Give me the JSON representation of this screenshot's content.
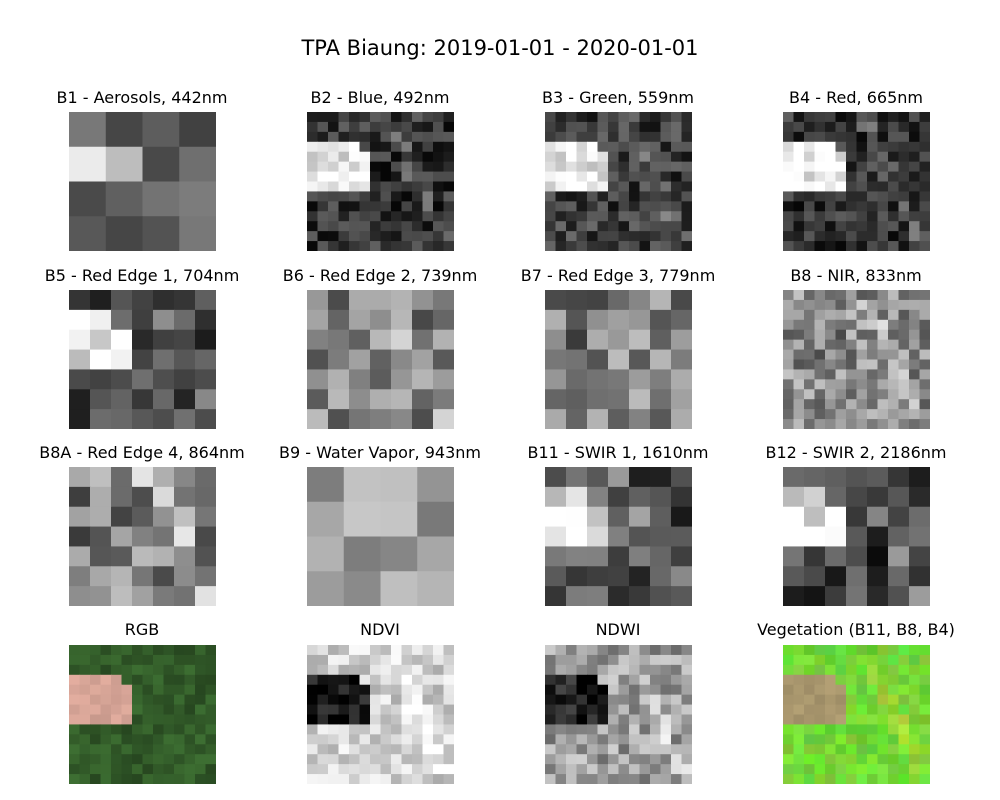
{
  "figure": {
    "title": "TPA Biaung: 2019-01-01 - 2020-01-01"
  },
  "panels": [
    {
      "label": "B1 - Aerosols, 442nm",
      "kind": "gray",
      "seed": 11,
      "grid": 4,
      "base": 0.34,
      "contrast": 0.16,
      "patch": 0.5
    },
    {
      "label": "B2 - Blue, 492nm",
      "kind": "gray",
      "seed": 21,
      "grid": 14,
      "base": 0.2,
      "contrast": 0.18,
      "patch": 0.72
    },
    {
      "label": "B3 - Green, 559nm",
      "kind": "gray",
      "seed": 31,
      "grid": 14,
      "base": 0.24,
      "contrast": 0.18,
      "patch": 0.68
    },
    {
      "label": "B4 - Red, 665nm",
      "kind": "gray",
      "seed": 41,
      "grid": 14,
      "base": 0.2,
      "contrast": 0.18,
      "patch": 0.74
    },
    {
      "label": "B5 - Red Edge 1, 704nm",
      "kind": "gray",
      "seed": 51,
      "grid": 7,
      "base": 0.26,
      "contrast": 0.18,
      "patch": 0.64
    },
    {
      "label": "B6 - Red Edge 2, 739nm",
      "kind": "gray",
      "seed": 61,
      "grid": 7,
      "base": 0.5,
      "contrast": 0.24,
      "patch": -0.08
    },
    {
      "label": "B7 - Red Edge 3, 779nm",
      "kind": "gray",
      "seed": 71,
      "grid": 7,
      "base": 0.5,
      "contrast": 0.24,
      "patch": -0.05
    },
    {
      "label": "B8 - NIR, 833nm",
      "kind": "gray",
      "seed": 81,
      "grid": 14,
      "base": 0.55,
      "contrast": 0.22,
      "patch": -0.05
    },
    {
      "label": "B8A - Red Edge 4, 864nm",
      "kind": "gray",
      "seed": 91,
      "grid": 7,
      "base": 0.52,
      "contrast": 0.26,
      "patch": -0.05
    },
    {
      "label": "B9 - Water Vapor, 943nm",
      "kind": "gray",
      "seed": 101,
      "grid": 4,
      "base": 0.62,
      "contrast": 0.18,
      "patch": 0.05
    },
    {
      "label": "B11 - SWIR 1, 1610nm",
      "kind": "gray",
      "seed": 111,
      "grid": 7,
      "base": 0.3,
      "contrast": 0.22,
      "patch": 0.58
    },
    {
      "label": "B12 - SWIR 2, 2186nm",
      "kind": "gray",
      "seed": 121,
      "grid": 7,
      "base": 0.26,
      "contrast": 0.22,
      "patch": 0.62
    },
    {
      "label": "RGB",
      "kind": "rgb",
      "seed": 131,
      "grid": 14,
      "base": 0.3,
      "contrast": 0.15,
      "patch": 1
    },
    {
      "label": "NDVI",
      "kind": "gray",
      "seed": 141,
      "grid": 14,
      "base": 0.82,
      "contrast": 0.16,
      "patch": -0.72
    },
    {
      "label": "NDWI",
      "kind": "gray",
      "seed": 151,
      "grid": 14,
      "base": 0.62,
      "contrast": 0.2,
      "patch": -0.52
    },
    {
      "label": "Vegetation (B11, B8, B4)",
      "kind": "veg",
      "seed": 161,
      "grid": 14,
      "base": 0.5,
      "contrast": 0.2,
      "patch": 1
    }
  ]
}
